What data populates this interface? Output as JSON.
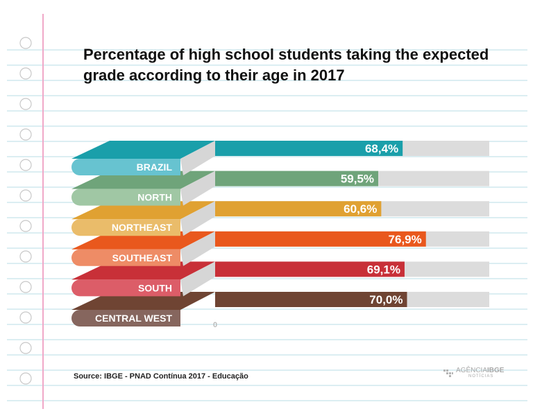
{
  "chart_data": {
    "type": "bar",
    "orientation": "horizontal",
    "title": "Percentage of high school students taking the expected grade according to their age in 2017",
    "categories": [
      "BRAZIL",
      "NORTH",
      "NORTHEAST",
      "SOUTHEAST",
      "SOUTH",
      "CENTRAL WEST"
    ],
    "values": [
      68.4,
      59.5,
      60.6,
      76.9,
      69.1,
      70.0
    ],
    "value_labels": [
      "68,4%",
      "59,5%",
      "60,6%",
      "76,9%",
      "69,1%",
      "70,0%"
    ],
    "xlim": [
      0,
      100
    ],
    "zero_label": "0",
    "colors": [
      "#1a9faa",
      "#6fa47a",
      "#e0a132",
      "#e9581d",
      "#c83038",
      "#6f4433"
    ],
    "label_colors": [
      "#67c3d0",
      "#a0c7a4",
      "#eabc6a",
      "#ee8c66",
      "#dc5d68",
      "#86665e"
    ],
    "track_color": "#dcdcdc",
    "grid": false,
    "legend": "none"
  },
  "footer": {
    "source": "Source: IBGE - PNAD Contínua 2017 - Educação",
    "logo_main_1": "AGÊNCIA",
    "logo_main_2": "IBGE",
    "logo_sub": "NOTÍCIAS"
  },
  "paper": {
    "line_color": "#cfe8ee",
    "margin_color": "#f0a8c8",
    "hole_color": "#c8c8c8"
  }
}
